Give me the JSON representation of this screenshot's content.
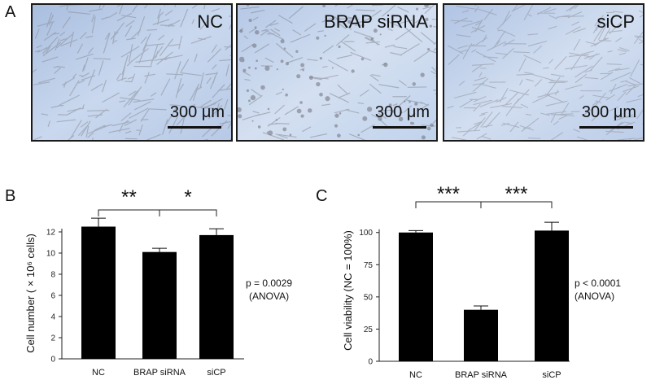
{
  "panel_a": {
    "letter": "A",
    "images": [
      {
        "label": "NC",
        "scale": "300 μm"
      },
      {
        "label": "BRAP siRNA",
        "scale": "300 μm"
      },
      {
        "label": "siCP",
        "scale": "300 μm"
      }
    ]
  },
  "panel_b": {
    "letter": "B",
    "p_value": "p = 0.0029",
    "test": "(ANOVA)"
  },
  "panel_c": {
    "letter": "C",
    "p_value": "p < 0.0001",
    "test": "(ANOVA)"
  },
  "chart_data": [
    {
      "type": "bar",
      "categories": [
        "NC",
        "BRAP siRNA",
        "siCP"
      ],
      "values": [
        12.5,
        10.1,
        11.7
      ],
      "errors": [
        0.8,
        0.35,
        0.6
      ],
      "ylabel": "Cell number ( × 10⁶ cells)",
      "ylim": [
        0,
        13
      ],
      "yticks": [
        0,
        2,
        4,
        6,
        8,
        10,
        12
      ],
      "bar_color": "#000000",
      "significance": [
        {
          "from": 0,
          "to": 1,
          "label": "**"
        },
        {
          "from": 1,
          "to": 2,
          "label": "*"
        }
      ]
    },
    {
      "type": "bar",
      "categories": [
        "NC",
        "BRAP siRNA",
        "siCP"
      ],
      "values": [
        100,
        40,
        101.5
      ],
      "errors": [
        1.5,
        3,
        6.5
      ],
      "ylabel": "Cell viability (NC = 100%)",
      "ylim": [
        0,
        115
      ],
      "yticks": [
        0,
        25,
        50,
        75,
        100
      ],
      "bar_color": "#000000",
      "significance": [
        {
          "from": 0,
          "to": 1,
          "label": "***"
        },
        {
          "from": 1,
          "to": 2,
          "label": "***"
        }
      ]
    }
  ]
}
